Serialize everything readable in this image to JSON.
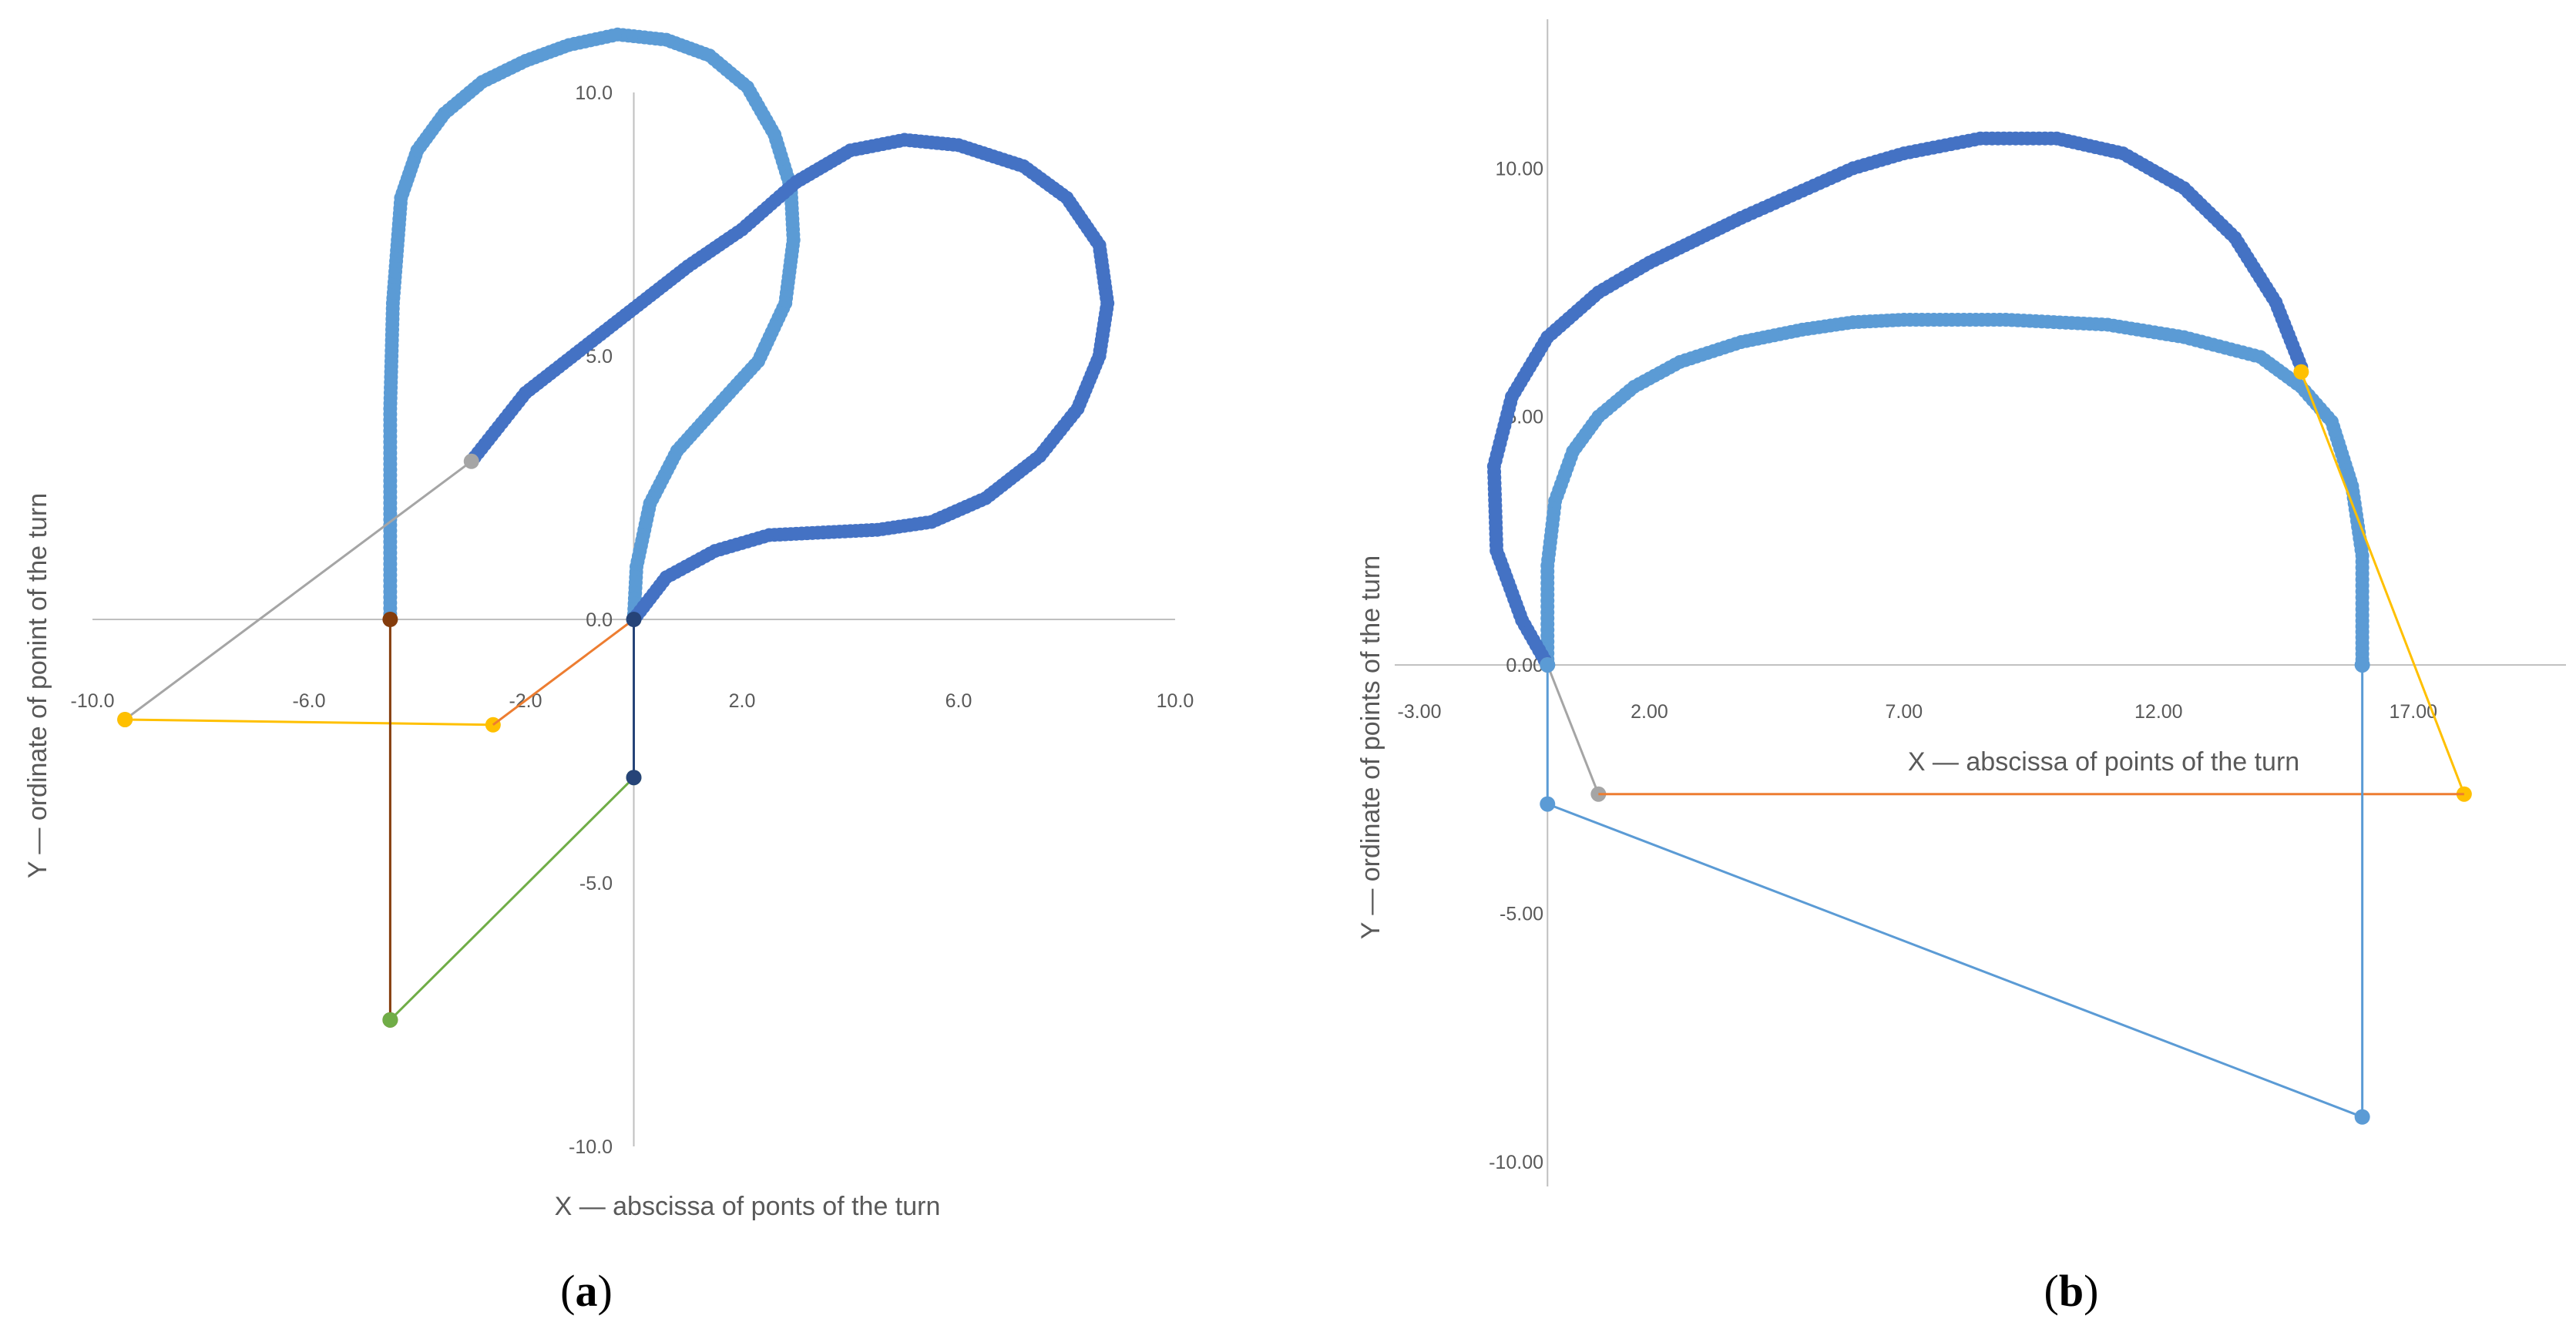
{
  "panels": [
    {
      "label_open": "(",
      "label_letter": "a",
      "label_close": ")"
    },
    {
      "label_open": "(",
      "label_letter": "b",
      "label_close": ")"
    }
  ],
  "colors": {
    "light_blue": "#5b9bd5",
    "dark_blue": "#4472c4",
    "gray": "#a5a5a5",
    "yellow": "#ffc000",
    "orange": "#ed7d31",
    "brown": "#843c0c",
    "green": "#70ad47",
    "navy": "#264478",
    "axis": "#bfbfbf"
  },
  "chart_data": [
    {
      "type": "scatter",
      "xlabel": "X — abscissa of ponts of the turn",
      "ylabel": "Y — ordinate of ponint of the turn",
      "xlim": [
        -10,
        10
      ],
      "ylim": [
        -10,
        10
      ],
      "x_ticks": [
        -10,
        -6,
        -2,
        2,
        6,
        10
      ],
      "x_tick_labels": [
        "-10.0",
        "-6.0",
        "-2.0",
        "2.0",
        "6.0",
        "10.0"
      ],
      "y_ticks": [
        10,
        5,
        0,
        -5,
        -10
      ],
      "y_tick_labels": [
        "10.0",
        "5.0",
        "0.0",
        "-5.0",
        "-10.0"
      ],
      "series": [
        {
          "color": "light_blue",
          "marker": "dense",
          "x": [
            -4.5,
            -4.5,
            -4.5,
            -4.45,
            -4.3,
            -4.0,
            -3.5,
            -2.8,
            -2.0,
            -1.2,
            -0.3,
            0.6,
            1.4,
            2.1,
            2.6,
            2.9,
            2.95,
            2.8,
            2.3,
            1.5,
            0.8,
            0.3,
            0.05,
            0.0
          ],
          "y": [
            0.0,
            2.0,
            4.0,
            6.0,
            8.0,
            8.9,
            9.6,
            10.2,
            10.6,
            10.9,
            11.1,
            11.0,
            10.7,
            10.1,
            9.2,
            8.2,
            7.2,
            6.0,
            4.9,
            4.0,
            3.2,
            2.2,
            1.0,
            0.0
          ]
        },
        {
          "color": "dark_blue",
          "marker": "dense",
          "x": [
            0.0,
            0.6,
            1.5,
            2.5,
            3.5,
            4.5,
            5.5,
            6.5,
            7.5,
            8.2,
            8.6,
            8.75,
            8.6,
            8.0,
            7.2,
            6.0,
            5.0,
            4.0,
            3.0,
            2.0,
            1.0,
            0.0,
            -1.0,
            -2.0,
            -3.0
          ],
          "y": [
            0.0,
            0.8,
            1.3,
            1.6,
            1.65,
            1.7,
            1.85,
            2.3,
            3.1,
            4.0,
            5.0,
            6.0,
            7.1,
            8.0,
            8.6,
            9.0,
            9.1,
            8.9,
            8.3,
            7.4,
            6.7,
            5.9,
            5.1,
            4.3,
            3.0
          ]
        },
        {
          "color": "gray",
          "marker": "endpoint",
          "x": [
            -3.0,
            -9.4
          ],
          "y": [
            3.0,
            -1.9
          ]
        },
        {
          "color": "yellow",
          "marker": "endpoint",
          "x": [
            -9.4,
            -2.6
          ],
          "y": [
            -1.9,
            -2.0
          ]
        },
        {
          "color": "orange",
          "marker": "none",
          "x": [
            -2.6,
            0.0
          ],
          "y": [
            -2.0,
            0.0
          ]
        },
        {
          "color": "brown",
          "marker": "endpoint",
          "x": [
            -4.5,
            -4.5
          ],
          "y": [
            0.0,
            -7.6
          ]
        },
        {
          "color": "green",
          "marker": "endpoint",
          "x": [
            -4.5,
            0.0
          ],
          "y": [
            -7.6,
            -3.0
          ]
        },
        {
          "color": "navy",
          "marker": "endpoint",
          "x": [
            0.0,
            0.0
          ],
          "y": [
            0.0,
            -3.0
          ]
        }
      ]
    },
    {
      "type": "scatter",
      "xlabel": "X — abscissa of points of the turn",
      "ylabel": "Y — ordinate of points of the turn",
      "xlim": [
        -3,
        20
      ],
      "ylim": [
        -10.5,
        13
      ],
      "x_ticks": [
        -3,
        2,
        7,
        12,
        17
      ],
      "x_tick_labels": [
        "-3.00",
        "2.00",
        "7.00",
        "12.00",
        "17.00"
      ],
      "y_ticks": [
        10,
        5,
        0,
        -5,
        -10
      ],
      "y_tick_labels": [
        "10.00",
        "5.00",
        "0.00",
        "-5.00",
        "-10.00"
      ],
      "series": [
        {
          "color": "light_blue",
          "marker": "dense",
          "x": [
            0.0,
            0.0,
            0.15,
            0.5,
            1.0,
            1.7,
            2.6,
            3.8,
            5.0,
            6.0,
            7.0,
            9.0,
            11.0,
            12.5,
            14.0,
            14.8,
            15.4,
            15.8,
            16.0,
            16.0,
            16.0
          ],
          "y": [
            0.0,
            2.0,
            3.3,
            4.3,
            5.0,
            5.6,
            6.1,
            6.5,
            6.75,
            6.9,
            6.95,
            6.95,
            6.85,
            6.6,
            6.2,
            5.6,
            4.9,
            3.6,
            2.2,
            1.0,
            0.0
          ]
        },
        {
          "color": "dark_blue",
          "marker": "dense",
          "x": [
            0.0,
            -0.5,
            -1.0,
            -1.05,
            -0.7,
            0.0,
            1.0,
            2.0,
            3.0,
            3.8,
            6.0,
            7.0,
            8.5,
            10.0,
            11.3,
            12.5,
            13.5,
            14.3,
            14.8
          ],
          "y": [
            0.0,
            0.9,
            2.3,
            4.0,
            5.4,
            6.6,
            7.5,
            8.1,
            8.6,
            9.0,
            10.0,
            10.3,
            10.6,
            10.6,
            10.3,
            9.6,
            8.6,
            7.3,
            6.0
          ]
        },
        {
          "color": "gray",
          "marker": "endpoint",
          "x": [
            0.0,
            1.0
          ],
          "y": [
            0.0,
            -2.6
          ]
        },
        {
          "color": "yellow",
          "marker": "endpoint",
          "x": [
            14.8,
            18.0
          ],
          "y": [
            5.9,
            -2.6
          ]
        },
        {
          "color": "orange",
          "marker": "none",
          "x": [
            1.0,
            18.0
          ],
          "y": [
            -2.6,
            -2.6
          ]
        },
        {
          "color": "light_blue",
          "marker": "endpoint",
          "x": [
            0.0,
            0.0,
            16.0,
            16.0
          ],
          "y": [
            0.0,
            -2.8,
            -9.1,
            0.0
          ]
        }
      ]
    }
  ]
}
